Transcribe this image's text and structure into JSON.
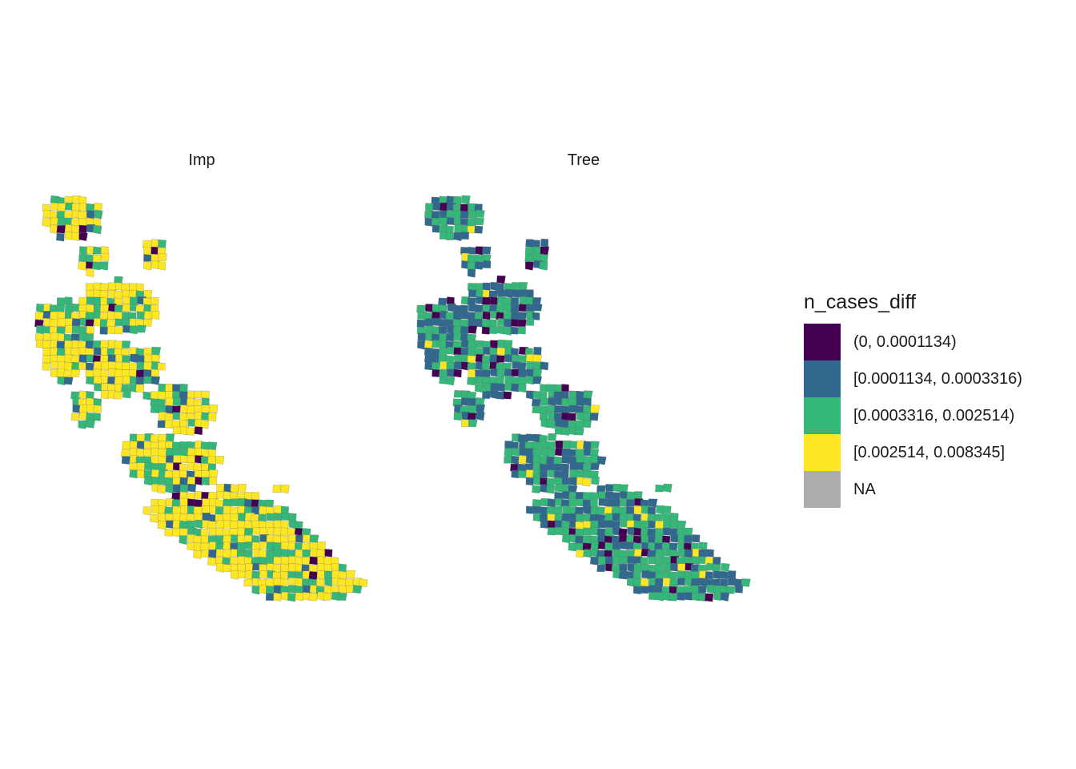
{
  "chart_data": {
    "type": "choropleth-map",
    "facets": [
      {
        "label": "Imp",
        "dominant_class": "[0.002514, 0.008345]"
      },
      {
        "label": "Tree",
        "dominant_class": "[0.0003316, 0.002514)"
      }
    ],
    "legend": {
      "title": "n_cases_diff",
      "placement": "right",
      "items": [
        {
          "label": "(0, 0.0001134)",
          "color": "#440154"
        },
        {
          "label": "[0.0001134, 0.0003316)",
          "color": "#31688E"
        },
        {
          "label": "[0.0003316, 0.002514)",
          "color": "#35B779"
        },
        {
          "label": "[0.002514, 0.008345]",
          "color": "#FDE725"
        },
        {
          "label": "NA",
          "color": "#ADADAD"
        }
      ]
    }
  }
}
